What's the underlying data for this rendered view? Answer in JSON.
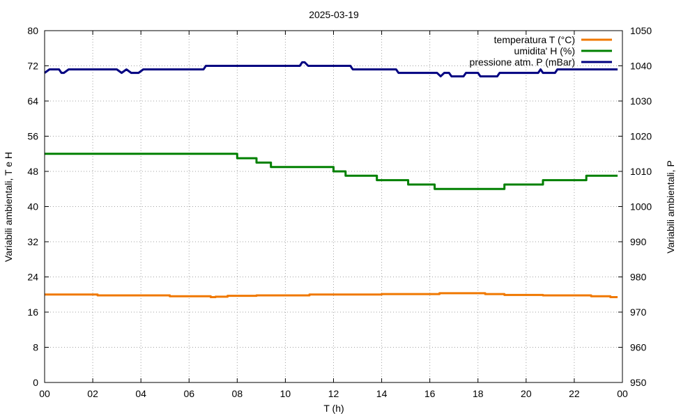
{
  "chart_data": {
    "type": "line",
    "title": "2025-03-19",
    "xlabel": "T (h)",
    "ylabel": "Variabili ambientali, T e H",
    "y2label": "Variabili ambientali, P",
    "xlim": [
      0,
      24
    ],
    "ylim": [
      0,
      80
    ],
    "y2lim": [
      950,
      1050
    ],
    "grid": true,
    "legend_position": "top-right",
    "x_ticks": [
      "00",
      "02",
      "04",
      "06",
      "08",
      "10",
      "12",
      "14",
      "16",
      "18",
      "20",
      "22",
      "00"
    ],
    "y_ticks": [
      "0",
      "8",
      "16",
      "24",
      "32",
      "40",
      "48",
      "56",
      "64",
      "72",
      "80"
    ],
    "y2_ticks": [
      "950",
      "960",
      "970",
      "980",
      "990",
      "1000",
      "1010",
      "1020",
      "1030",
      "1040",
      "1050"
    ],
    "series": [
      {
        "name": "temperatura T (°C)",
        "axis": "y",
        "color": "#f07800",
        "x": [
          0,
          2.2,
          2.2,
          5.2,
          5.2,
          6.9,
          6.9,
          7.1,
          7.1,
          7.6,
          7.6,
          8.8,
          8.8,
          11.0,
          11.0,
          14.0,
          14.0,
          16.4,
          16.4,
          18.3,
          18.3,
          19.1,
          19.1,
          20.7,
          20.7,
          22.7,
          22.7,
          23.5,
          23.5,
          23.8
        ],
        "values": [
          20.0,
          20.0,
          19.8,
          19.8,
          19.6,
          19.6,
          19.4,
          19.4,
          19.5,
          19.5,
          19.7,
          19.7,
          19.8,
          19.8,
          20.0,
          20.0,
          20.1,
          20.1,
          20.3,
          20.3,
          20.1,
          20.1,
          19.9,
          19.9,
          19.8,
          19.8,
          19.6,
          19.6,
          19.4,
          19.4
        ]
      },
      {
        "name": "umidita' H (%)",
        "axis": "y",
        "color": "#008000",
        "x": [
          0,
          8.0,
          8.0,
          8.8,
          8.8,
          9.4,
          9.4,
          12.0,
          12.0,
          12.5,
          12.5,
          13.8,
          13.8,
          15.1,
          15.1,
          16.2,
          16.2,
          19.1,
          19.1,
          20.7,
          20.7,
          22.5,
          22.5,
          23.8
        ],
        "values": [
          52,
          52,
          51,
          51,
          50,
          50,
          49,
          49,
          48,
          48,
          47,
          47,
          46,
          46,
          45,
          45,
          44,
          44,
          45,
          45,
          46,
          46,
          47,
          47
        ]
      },
      {
        "name": "pressione atm. P (mBar)",
        "axis": "y2",
        "color": "#000080",
        "x": [
          0,
          0.2,
          0.6,
          0.7,
          0.8,
          1.0,
          3.0,
          3.2,
          3.4,
          3.6,
          3.9,
          4.1,
          6.6,
          6.7,
          10.6,
          10.7,
          10.8,
          10.95,
          12.7,
          12.8,
          14.6,
          14.7,
          16.3,
          16.45,
          16.6,
          16.8,
          16.9,
          17.4,
          17.5,
          18.0,
          18.1,
          18.8,
          18.9,
          20.5,
          20.6,
          20.7,
          21.2,
          21.3,
          23.8
        ],
        "values": [
          1038,
          1039,
          1039,
          1038,
          1038,
          1039,
          1039,
          1038,
          1039,
          1038,
          1038,
          1039,
          1039,
          1040,
          1040,
          1041,
          1041,
          1040,
          1040,
          1039,
          1039,
          1038,
          1038,
          1037,
          1038,
          1038,
          1037,
          1037,
          1038,
          1038,
          1037,
          1037,
          1038,
          1038,
          1039,
          1038,
          1038,
          1039,
          1039
        ]
      }
    ]
  }
}
